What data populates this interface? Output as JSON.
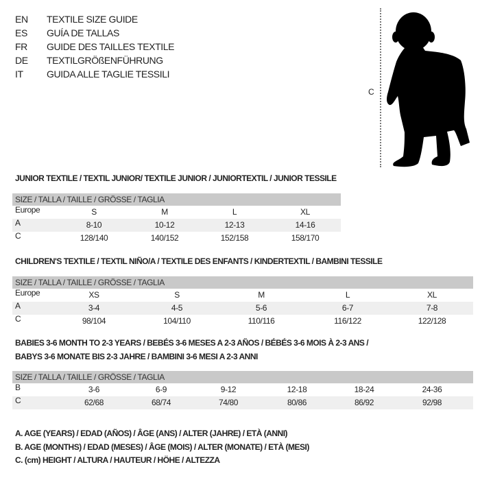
{
  "languages": [
    {
      "code": "EN",
      "label": "TEXTILE SIZE GUIDE"
    },
    {
      "code": "ES",
      "label": "GUÍA DE TALLAS"
    },
    {
      "code": "FR",
      "label": "GUIDE DES TAILLES TEXTILE"
    },
    {
      "code": "DE",
      "label": "TEXTILGRÖßENFÜHRUNG"
    },
    {
      "code": "IT",
      "label": "GUIDA ALLE TAGLIE TESSILI"
    }
  ],
  "figure": {
    "height_marker": "C",
    "icon": "child-silhouette-icon"
  },
  "tables": [
    {
      "title_lines": [
        "JUNIOR TEXTILE / TEXTIL JUNIOR/ TEXTILE JUNIOR / JUNIORTEXTIL / JUNIOR TESSILE"
      ],
      "header": "SIZE / TALLA / TAILLE / GRÖSSE / TAGLIA",
      "rows": [
        {
          "label": "Europe",
          "cells": [
            "S",
            "M",
            "L",
            "XL"
          ]
        },
        {
          "label": "A",
          "cells": [
            "8-10",
            "10-12",
            "12-13",
            "14-16"
          ]
        },
        {
          "label": "C",
          "cells": [
            "128/140",
            "140/152",
            "152/158",
            "158/170"
          ]
        }
      ]
    },
    {
      "title_lines": [
        "CHILDREN'S TEXTILE / TEXTIL NIÑO/A / TEXTILE DES ENFANTS / KINDERTEXTIL / BAMBINI TESSILE"
      ],
      "header": "SIZE / TALLA / TAILLE / GRÖSSE / TAGLIA",
      "rows": [
        {
          "label": "Europe",
          "cells": [
            "XS",
            "S",
            "M",
            "L",
            "XL"
          ]
        },
        {
          "label": "A",
          "cells": [
            "3-4",
            "4-5",
            "5-6",
            "6-7",
            "7-8"
          ]
        },
        {
          "label": "C",
          "cells": [
            "98/104",
            "104/110",
            "110/116",
            "116/122",
            "122/128"
          ]
        }
      ]
    },
    {
      "title_lines": [
        "BABIES 3-6 MONTH TO 2-3 YEARS / BEBÉS 3-6 MESES A 2-3 AÑOS / BÉBÉS 3-6 MOIS À 2-3 ANS /",
        "BABYS 3-6 MONATE BIS 2-3 JAHRE / BAMBINI 3-6 MESI A 2-3 ANNI"
      ],
      "header": "SIZE / TALLA / TAILLE / GRÖSSE / TAGLIA",
      "rows": [
        {
          "label": "B",
          "cells": [
            "3-6",
            "6-9",
            "9-12",
            "12-18",
            "18-24",
            "24-36"
          ]
        },
        {
          "label": "C",
          "cells": [
            "62/68",
            "68/74",
            "74/80",
            "80/86",
            "86/92",
            "92/98"
          ]
        }
      ]
    }
  ],
  "legend": [
    "A. AGE (YEARS) / EDAD (AÑOS) / ÂGE (ANS) / ALTER (JAHRE) / ETÀ (ANNI)",
    "B. AGE (MONTHS) / EDAD (MESES) / ÂGE (MOIS) / ALTER (MONATE) / ETÀ (MESI)",
    "C. (cm) HEIGHT / ALTURA / HAUTEUR / HÖHE / ALTEZZA"
  ],
  "colors": {
    "header_bg": "#c9c9c9",
    "row_shade": "#efefef",
    "text": "#222222"
  }
}
